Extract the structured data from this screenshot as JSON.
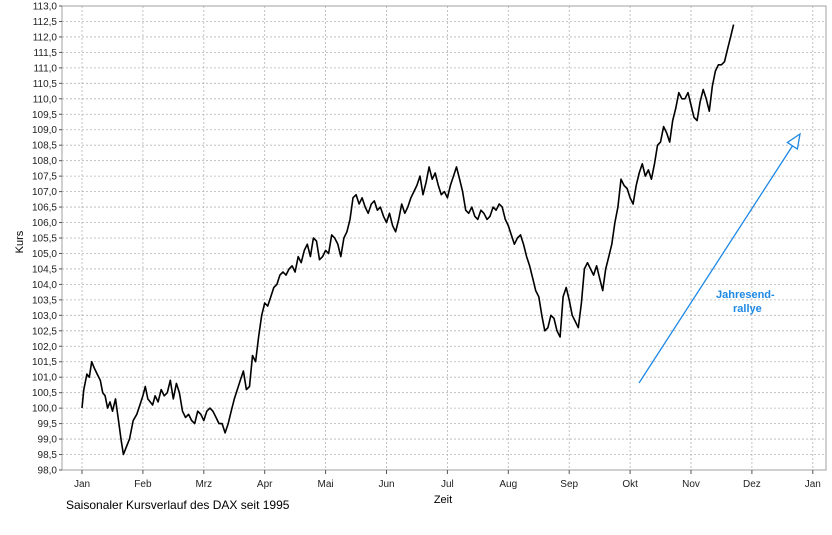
{
  "caption": "Saisonaler Kursverlauf des DAX seit 1995",
  "colors": {
    "line": "#000000",
    "annotation": "#1e88e5",
    "grid": "#b4b4b4",
    "frame": "#a0a0a0"
  },
  "chart_data": {
    "type": "line",
    "title": "",
    "xlabel": "Zeit",
    "ylabel": "Kurs",
    "ylim": [
      98.0,
      113.0
    ],
    "ytick_step": 0.5,
    "xlim": [
      0,
      12.2
    ],
    "x_tick_labels": [
      "Jan",
      "Feb",
      "Mrz",
      "Apr",
      "Mai",
      "Jun",
      "Jul",
      "Aug",
      "Sep",
      "Okt",
      "Nov",
      "Dez",
      "Jan"
    ],
    "grid": true,
    "annotation": {
      "text_line1": "Jahresend-",
      "text_line2": "rallye"
    },
    "series": [
      {
        "points": [
          [
            0.0,
            100.0
          ],
          [
            0.03,
            100.6
          ],
          [
            0.08,
            101.1
          ],
          [
            0.12,
            101.0
          ],
          [
            0.16,
            101.5
          ],
          [
            0.2,
            101.3
          ],
          [
            0.25,
            101.1
          ],
          [
            0.3,
            100.9
          ],
          [
            0.34,
            100.5
          ],
          [
            0.38,
            100.4
          ],
          [
            0.42,
            100.0
          ],
          [
            0.46,
            100.2
          ],
          [
            0.5,
            99.9
          ],
          [
            0.55,
            100.3
          ],
          [
            0.6,
            99.6
          ],
          [
            0.64,
            99.0
          ],
          [
            0.68,
            98.5
          ],
          [
            0.72,
            98.7
          ],
          [
            0.78,
            99.0
          ],
          [
            0.84,
            99.6
          ],
          [
            0.9,
            99.8
          ],
          [
            0.95,
            100.1
          ],
          [
            1.0,
            100.4
          ],
          [
            1.04,
            100.7
          ],
          [
            1.08,
            100.3
          ],
          [
            1.12,
            100.2
          ],
          [
            1.16,
            100.1
          ],
          [
            1.2,
            100.4
          ],
          [
            1.25,
            100.2
          ],
          [
            1.3,
            100.6
          ],
          [
            1.35,
            100.4
          ],
          [
            1.4,
            100.5
          ],
          [
            1.45,
            100.9
          ],
          [
            1.5,
            100.3
          ],
          [
            1.55,
            100.8
          ],
          [
            1.6,
            100.5
          ],
          [
            1.65,
            99.9
          ],
          [
            1.7,
            99.7
          ],
          [
            1.75,
            99.8
          ],
          [
            1.8,
            99.6
          ],
          [
            1.85,
            99.5
          ],
          [
            1.9,
            99.9
          ],
          [
            1.95,
            99.8
          ],
          [
            2.0,
            99.6
          ],
          [
            2.05,
            99.9
          ],
          [
            2.1,
            100.0
          ],
          [
            2.15,
            99.9
          ],
          [
            2.2,
            99.7
          ],
          [
            2.25,
            99.5
          ],
          [
            2.3,
            99.5
          ],
          [
            2.35,
            99.2
          ],
          [
            2.4,
            99.5
          ],
          [
            2.45,
            99.9
          ],
          [
            2.5,
            100.3
          ],
          [
            2.55,
            100.6
          ],
          [
            2.6,
            100.9
          ],
          [
            2.65,
            101.2
          ],
          [
            2.7,
            100.6
          ],
          [
            2.75,
            100.7
          ],
          [
            2.8,
            101.7
          ],
          [
            2.85,
            101.5
          ],
          [
            2.9,
            102.3
          ],
          [
            2.95,
            103.0
          ],
          [
            3.0,
            103.4
          ],
          [
            3.05,
            103.3
          ],
          [
            3.1,
            103.6
          ],
          [
            3.15,
            103.9
          ],
          [
            3.2,
            104.0
          ],
          [
            3.25,
            104.3
          ],
          [
            3.3,
            104.4
          ],
          [
            3.35,
            104.3
          ],
          [
            3.4,
            104.5
          ],
          [
            3.45,
            104.6
          ],
          [
            3.5,
            104.4
          ],
          [
            3.55,
            104.9
          ],
          [
            3.6,
            104.7
          ],
          [
            3.65,
            105.1
          ],
          [
            3.7,
            105.3
          ],
          [
            3.75,
            104.9
          ],
          [
            3.8,
            105.5
          ],
          [
            3.85,
            105.4
          ],
          [
            3.9,
            104.8
          ],
          [
            3.95,
            104.9
          ],
          [
            4.0,
            105.1
          ],
          [
            4.05,
            105.0
          ],
          [
            4.1,
            105.6
          ],
          [
            4.15,
            105.5
          ],
          [
            4.2,
            105.3
          ],
          [
            4.25,
            104.9
          ],
          [
            4.3,
            105.5
          ],
          [
            4.35,
            105.7
          ],
          [
            4.4,
            106.1
          ],
          [
            4.45,
            106.8
          ],
          [
            4.5,
            106.9
          ],
          [
            4.55,
            106.6
          ],
          [
            4.6,
            106.8
          ],
          [
            4.65,
            106.5
          ],
          [
            4.7,
            106.3
          ],
          [
            4.75,
            106.6
          ],
          [
            4.8,
            106.7
          ],
          [
            4.85,
            106.4
          ],
          [
            4.9,
            106.5
          ],
          [
            4.95,
            106.2
          ],
          [
            5.0,
            106.0
          ],
          [
            5.05,
            106.3
          ],
          [
            5.1,
            105.9
          ],
          [
            5.15,
            105.7
          ],
          [
            5.2,
            106.1
          ],
          [
            5.25,
            106.6
          ],
          [
            5.3,
            106.3
          ],
          [
            5.35,
            106.5
          ],
          [
            5.4,
            106.8
          ],
          [
            5.45,
            107.0
          ],
          [
            5.5,
            107.2
          ],
          [
            5.55,
            107.5
          ],
          [
            5.6,
            106.9
          ],
          [
            5.65,
            107.3
          ],
          [
            5.7,
            107.8
          ],
          [
            5.75,
            107.4
          ],
          [
            5.8,
            107.6
          ],
          [
            5.85,
            107.2
          ],
          [
            5.9,
            106.9
          ],
          [
            5.95,
            107.0
          ],
          [
            6.0,
            106.8
          ],
          [
            6.05,
            107.2
          ],
          [
            6.1,
            107.5
          ],
          [
            6.15,
            107.8
          ],
          [
            6.2,
            107.4
          ],
          [
            6.25,
            107.0
          ],
          [
            6.3,
            106.4
          ],
          [
            6.35,
            106.3
          ],
          [
            6.4,
            106.5
          ],
          [
            6.45,
            106.2
          ],
          [
            6.5,
            106.1
          ],
          [
            6.55,
            106.4
          ],
          [
            6.6,
            106.3
          ],
          [
            6.65,
            106.1
          ],
          [
            6.7,
            106.2
          ],
          [
            6.75,
            106.5
          ],
          [
            6.8,
            106.4
          ],
          [
            6.85,
            106.6
          ],
          [
            6.9,
            106.5
          ],
          [
            6.95,
            106.1
          ],
          [
            7.0,
            105.9
          ],
          [
            7.05,
            105.6
          ],
          [
            7.1,
            105.3
          ],
          [
            7.15,
            105.5
          ],
          [
            7.2,
            105.6
          ],
          [
            7.25,
            105.3
          ],
          [
            7.3,
            104.9
          ],
          [
            7.35,
            104.6
          ],
          [
            7.4,
            104.2
          ],
          [
            7.45,
            103.8
          ],
          [
            7.5,
            103.6
          ],
          [
            7.55,
            103.0
          ],
          [
            7.6,
            102.5
          ],
          [
            7.65,
            102.6
          ],
          [
            7.7,
            103.0
          ],
          [
            7.75,
            102.9
          ],
          [
            7.8,
            102.5
          ],
          [
            7.85,
            102.3
          ],
          [
            7.9,
            103.6
          ],
          [
            7.95,
            103.9
          ],
          [
            8.0,
            103.5
          ],
          [
            8.05,
            103.0
          ],
          [
            8.1,
            102.8
          ],
          [
            8.15,
            102.6
          ],
          [
            8.2,
            103.4
          ],
          [
            8.25,
            104.5
          ],
          [
            8.3,
            104.7
          ],
          [
            8.35,
            104.5
          ],
          [
            8.4,
            104.3
          ],
          [
            8.45,
            104.6
          ],
          [
            8.5,
            104.2
          ],
          [
            8.55,
            103.8
          ],
          [
            8.6,
            104.5
          ],
          [
            8.65,
            104.9
          ],
          [
            8.7,
            105.3
          ],
          [
            8.75,
            106.0
          ],
          [
            8.8,
            106.5
          ],
          [
            8.85,
            107.4
          ],
          [
            8.9,
            107.2
          ],
          [
            8.95,
            107.1
          ],
          [
            9.0,
            106.8
          ],
          [
            9.05,
            106.6
          ],
          [
            9.1,
            107.2
          ],
          [
            9.15,
            107.6
          ],
          [
            9.2,
            107.9
          ],
          [
            9.25,
            107.5
          ],
          [
            9.3,
            107.7
          ],
          [
            9.35,
            107.4
          ],
          [
            9.4,
            107.9
          ],
          [
            9.45,
            108.5
          ],
          [
            9.5,
            108.6
          ],
          [
            9.55,
            109.1
          ],
          [
            9.6,
            108.9
          ],
          [
            9.65,
            108.6
          ],
          [
            9.7,
            109.3
          ],
          [
            9.75,
            109.7
          ],
          [
            9.8,
            110.2
          ],
          [
            9.85,
            110.0
          ],
          [
            9.9,
            110.0
          ],
          [
            9.95,
            110.2
          ],
          [
            10.0,
            109.8
          ],
          [
            10.05,
            109.4
          ],
          [
            10.1,
            109.3
          ],
          [
            10.15,
            109.9
          ],
          [
            10.2,
            110.3
          ],
          [
            10.25,
            110.0
          ],
          [
            10.3,
            109.6
          ],
          [
            10.35,
            110.4
          ],
          [
            10.4,
            110.9
          ],
          [
            10.45,
            111.1
          ],
          [
            10.5,
            111.1
          ],
          [
            10.55,
            111.2
          ],
          [
            10.6,
            111.6
          ],
          [
            10.65,
            112.0
          ],
          [
            10.7,
            112.4
          ]
        ]
      }
    ]
  }
}
